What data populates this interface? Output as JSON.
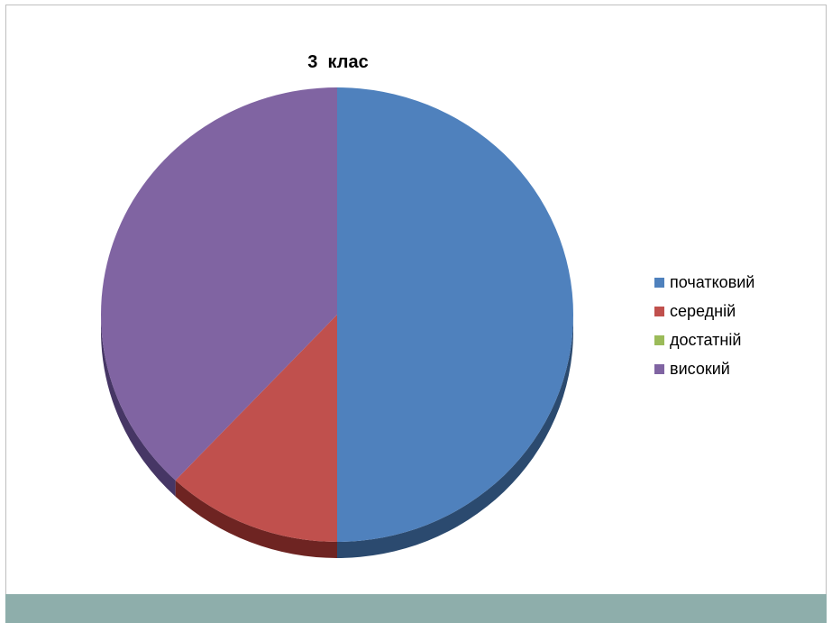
{
  "chart_data": {
    "type": "pie",
    "title": "3  клас",
    "categories": [
      "початковий",
      "середній",
      "достатній",
      "високий"
    ],
    "values": [
      50,
      12,
      0,
      38
    ],
    "colors": [
      "#4f81bd",
      "#c0504d",
      "#9bbb59",
      "#8064a2"
    ],
    "side_colors": [
      "#2b4a6f",
      "#6e2422",
      "#55683a",
      "#463665"
    ],
    "legend_position": "right"
  }
}
